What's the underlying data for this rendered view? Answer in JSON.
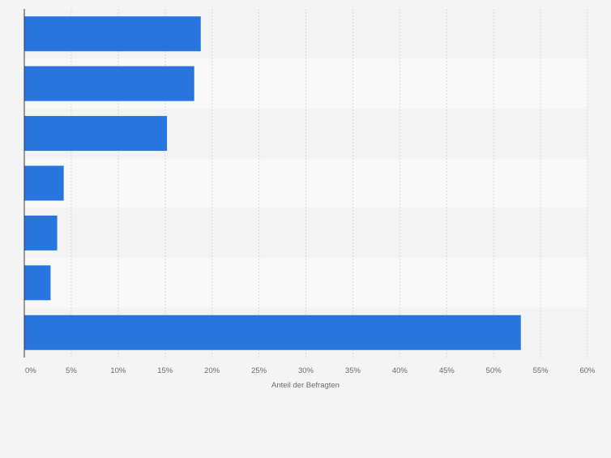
{
  "chart_data": {
    "type": "bar",
    "orientation": "horizontal",
    "categories": [
      "",
      "",
      "",
      "",
      "",
      "",
      ""
    ],
    "values": [
      18.8,
      18.1,
      15.2,
      4.2,
      3.5,
      2.8,
      52.9
    ],
    "xlabel": "Anteil der Befragten",
    "ylabel": "",
    "xlim": [
      0,
      60
    ],
    "xticks": [
      0,
      5,
      10,
      15,
      20,
      25,
      30,
      35,
      40,
      45,
      50,
      55,
      60
    ],
    "tick_labels": [
      "0%",
      "5%",
      "10%",
      "15%",
      "20%",
      "25%",
      "30%",
      "35%",
      "40%",
      "45%",
      "50%",
      "55%",
      "60%"
    ],
    "grid": "vertical",
    "legend": "none",
    "colors": {
      "bar": "#2876dd",
      "band_light": "#f8f8f8",
      "band_dark": "#f3f3f3",
      "grid": "#d9d9d9",
      "axis": "#3a3a3a",
      "tick_text": "#6b6b6b",
      "background": "#f4f4f4"
    }
  }
}
